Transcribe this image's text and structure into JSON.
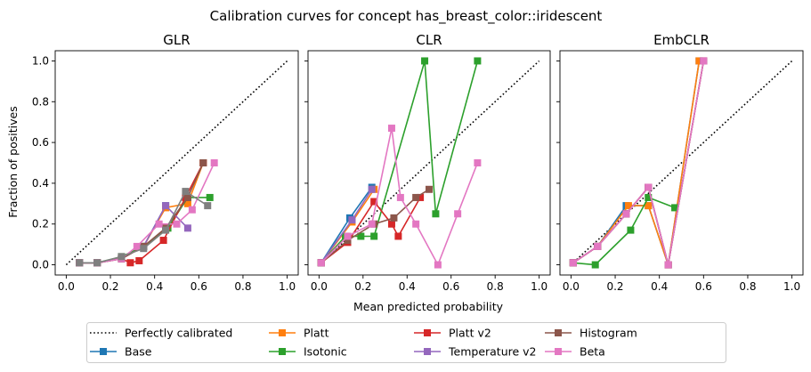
{
  "title": "Calibration curves for concept has_breast_color::iridescent",
  "xlabel": "Mean predicted probability",
  "ylabel": "Fraction of positives",
  "legend": {
    "entries": [
      {
        "name": "Perfectly calibrated",
        "color": "#000000",
        "style": "dotted"
      },
      {
        "name": "Base",
        "color": "#1f77b4"
      },
      {
        "name": "Platt",
        "color": "#ff7f0e"
      },
      {
        "name": "Isotonic",
        "color": "#2ca02c"
      },
      {
        "name": "Platt v2",
        "color": "#d62728"
      },
      {
        "name": "Temperature v2",
        "color": "#9467bd"
      },
      {
        "name": "Histogram",
        "color": "#8c564b"
      },
      {
        "name": "Beta",
        "color": "#e377c2"
      }
    ]
  },
  "chart_data": [
    {
      "type": "line",
      "title": "GLR",
      "xlim": [
        -0.05,
        1.05
      ],
      "ylim": [
        -0.05,
        1.05
      ],
      "xticks": [
        "0.0",
        "0.2",
        "0.4",
        "0.6",
        "0.8",
        "1.0"
      ],
      "yticks": [
        "0.0",
        "0.2",
        "0.4",
        "0.6",
        "0.8",
        "1.0"
      ],
      "grid": false,
      "series": [
        {
          "name": "Perfectly calibrated",
          "color": "#000000",
          "style": "dotted",
          "x": [
            0,
            1
          ],
          "y": [
            0,
            1
          ]
        },
        {
          "name": "Base",
          "color": "#1f77b4",
          "x": [
            0.06,
            0.14,
            0.25,
            0.35,
            0.45
          ],
          "y": [
            0.01,
            0.01,
            0.03,
            0.09,
            0.29
          ]
        },
        {
          "name": "Platt",
          "color": "#ff7f0e",
          "x": [
            0.06,
            0.14,
            0.25,
            0.35,
            0.45,
            0.55,
            0.62
          ],
          "y": [
            0.01,
            0.01,
            0.03,
            0.09,
            0.28,
            0.3,
            0.5
          ]
        },
        {
          "name": "Isotonic",
          "color": "#2ca02c",
          "x": [
            0.06,
            0.14,
            0.25,
            0.35,
            0.46,
            0.55,
            0.65
          ],
          "y": [
            0.01,
            0.01,
            0.04,
            0.09,
            0.18,
            0.33,
            0.33
          ]
        },
        {
          "name": "Platt v2",
          "color": "#d62728",
          "x": [
            0.06,
            0.14,
            0.25,
            0.29,
            0.33,
            0.44,
            0.54,
            0.62
          ],
          "y": [
            0.01,
            0.01,
            0.03,
            0.01,
            0.02,
            0.12,
            0.33,
            0.5
          ]
        },
        {
          "name": "Temperature v2",
          "color": "#9467bd",
          "x": [
            0.06,
            0.14,
            0.25,
            0.35,
            0.45,
            0.55
          ],
          "y": [
            0.01,
            0.01,
            0.03,
            0.09,
            0.29,
            0.18
          ]
        },
        {
          "name": "Histogram",
          "color": "#8c564b",
          "x": [
            0.06,
            0.14,
            0.25,
            0.35,
            0.45,
            0.55,
            0.62
          ],
          "y": [
            0.01,
            0.01,
            0.03,
            0.09,
            0.18,
            0.33,
            0.5
          ]
        },
        {
          "name": "Beta",
          "color": "#e377c2",
          "x": [
            0.06,
            0.14,
            0.25,
            0.32,
            0.42,
            0.5,
            0.57,
            0.67
          ],
          "y": [
            0.01,
            0.01,
            0.03,
            0.09,
            0.2,
            0.2,
            0.27,
            0.5
          ]
        },
        {
          "name": "",
          "color": "#7f7f7f",
          "x": [
            0.06,
            0.14,
            0.25,
            0.35,
            0.45,
            0.54,
            0.64
          ],
          "y": [
            0.01,
            0.01,
            0.04,
            0.08,
            0.17,
            0.36,
            0.29
          ]
        }
      ]
    },
    {
      "type": "line",
      "title": "CLR",
      "xlim": [
        -0.05,
        1.05
      ],
      "ylim": [
        -0.05,
        1.05
      ],
      "xticks": [
        "0.0",
        "0.2",
        "0.4",
        "0.6",
        "0.8",
        "1.0"
      ],
      "grid": false,
      "series": [
        {
          "name": "Perfectly calibrated",
          "color": "#000000",
          "style": "dotted",
          "x": [
            0,
            1
          ],
          "y": [
            0,
            1
          ]
        },
        {
          "name": "Base",
          "color": "#1f77b4",
          "x": [
            0.01,
            0.14,
            0.24
          ],
          "y": [
            0.01,
            0.23,
            0.38
          ]
        },
        {
          "name": "Platt",
          "color": "#ff7f0e",
          "x": [
            0.01,
            0.15,
            0.25
          ],
          "y": [
            0.01,
            0.21,
            0.37
          ]
        },
        {
          "name": "Isotonic",
          "color": "#2ca02c",
          "x": [
            0.01,
            0.12,
            0.19,
            0.25,
            0.48,
            0.53,
            0.72
          ],
          "y": [
            0.01,
            0.14,
            0.14,
            0.14,
            1.0,
            0.25,
            1.0
          ]
        },
        {
          "name": "Platt v2",
          "color": "#d62728",
          "x": [
            0.01,
            0.13,
            0.25,
            0.33,
            0.36,
            0.46
          ],
          "y": [
            0.01,
            0.11,
            0.31,
            0.2,
            0.14,
            0.33
          ]
        },
        {
          "name": "Temperature v2",
          "color": "#9467bd",
          "x": [
            0.01,
            0.15,
            0.24
          ],
          "y": [
            0.01,
            0.22,
            0.37
          ]
        },
        {
          "name": "Histogram",
          "color": "#8c564b",
          "x": [
            0.01,
            0.13,
            0.25,
            0.34,
            0.44,
            0.5
          ],
          "y": [
            0.01,
            0.12,
            0.2,
            0.23,
            0.33,
            0.37
          ]
        },
        {
          "name": "Beta",
          "color": "#e377c2",
          "x": [
            0.01,
            0.13,
            0.24,
            0.33,
            0.37,
            0.44,
            0.54,
            0.63,
            0.72
          ],
          "y": [
            0.01,
            0.14,
            0.2,
            0.67,
            0.33,
            0.2,
            0.0,
            0.25,
            0.5
          ]
        }
      ]
    },
    {
      "type": "line",
      "title": "EmbCLR",
      "xlim": [
        -0.05,
        1.05
      ],
      "ylim": [
        -0.05,
        1.05
      ],
      "xticks": [
        "0.0",
        "0.2",
        "0.4",
        "0.6",
        "0.8",
        "1.0"
      ],
      "grid": false,
      "series": [
        {
          "name": "Perfectly calibrated",
          "color": "#000000",
          "style": "dotted",
          "x": [
            0,
            1
          ],
          "y": [
            0,
            1
          ]
        },
        {
          "name": "Base",
          "color": "#1f77b4",
          "x": [
            0.01,
            0.12,
            0.25,
            0.35,
            0.44,
            0.58
          ],
          "y": [
            0.01,
            0.09,
            0.29,
            0.29,
            0.0,
            1.0
          ]
        },
        {
          "name": "Platt",
          "color": "#ff7f0e",
          "x": [
            0.01,
            0.12,
            0.26,
            0.35,
            0.44,
            0.58
          ],
          "y": [
            0.01,
            0.09,
            0.29,
            0.29,
            0.0,
            1.0
          ]
        },
        {
          "name": "Isotonic",
          "color": "#2ca02c",
          "x": [
            0.01,
            0.11,
            0.27,
            0.35,
            0.47
          ],
          "y": [
            0.01,
            0.0,
            0.17,
            0.33,
            0.28
          ]
        },
        {
          "name": "Platt v2",
          "color": "#d62728",
          "x": [
            0.01,
            0.12,
            0.25,
            0.35,
            0.44,
            0.6
          ],
          "y": [
            0.01,
            0.09,
            0.25,
            0.38,
            0.0,
            1.0
          ]
        },
        {
          "name": "Temperature v2",
          "color": "#9467bd",
          "x": [
            0.01,
            0.12,
            0.25,
            0.35,
            0.44,
            0.6
          ],
          "y": [
            0.01,
            0.09,
            0.25,
            0.38,
            0.0,
            1.0
          ]
        },
        {
          "name": "Histogram",
          "color": "#8c564b",
          "x": [
            0.01,
            0.12,
            0.25,
            0.35,
            0.44,
            0.6
          ],
          "y": [
            0.01,
            0.09,
            0.25,
            0.38,
            0.0,
            1.0
          ]
        },
        {
          "name": "Beta",
          "color": "#e377c2",
          "x": [
            0.01,
            0.12,
            0.25,
            0.35,
            0.44,
            0.6
          ],
          "y": [
            0.01,
            0.09,
            0.25,
            0.38,
            0.0,
            1.0
          ]
        }
      ]
    }
  ]
}
